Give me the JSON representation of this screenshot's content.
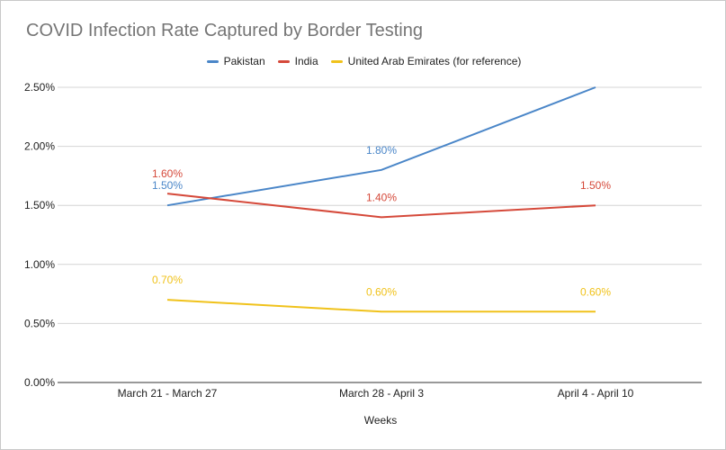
{
  "chart_data": {
    "type": "line",
    "title": "COVID Infection Rate Captured by Border Testing",
    "xlabel": "Weeks",
    "ylabel": "",
    "categories": [
      "March 21 - March 27",
      "March 28 - April 3",
      "April 4 - April 10"
    ],
    "ylim": [
      0,
      2.5
    ],
    "yticks": [
      0,
      0.5,
      1.0,
      1.5,
      2.0,
      2.5
    ],
    "ytick_labels": [
      "0.00%",
      "0.50%",
      "1.00%",
      "1.50%",
      "2.00%",
      "2.50%"
    ],
    "grid": true,
    "legend_position": "top",
    "series": [
      {
        "name": "Pakistan",
        "color": "#4a86c8",
        "values": [
          1.5,
          1.8,
          2.5
        ],
        "labels": [
          "1.50%",
          "1.80%",
          ""
        ]
      },
      {
        "name": "India",
        "color": "#d5493a",
        "values": [
          1.6,
          1.4,
          1.5
        ],
        "labels": [
          "1.60%",
          "1.40%",
          "1.50%"
        ]
      },
      {
        "name": "United Arab Emirates (for reference)",
        "color": "#f0c21b",
        "values": [
          0.7,
          0.6,
          0.6
        ],
        "labels": [
          "0.70%",
          "0.60%",
          "0.60%"
        ]
      }
    ]
  }
}
